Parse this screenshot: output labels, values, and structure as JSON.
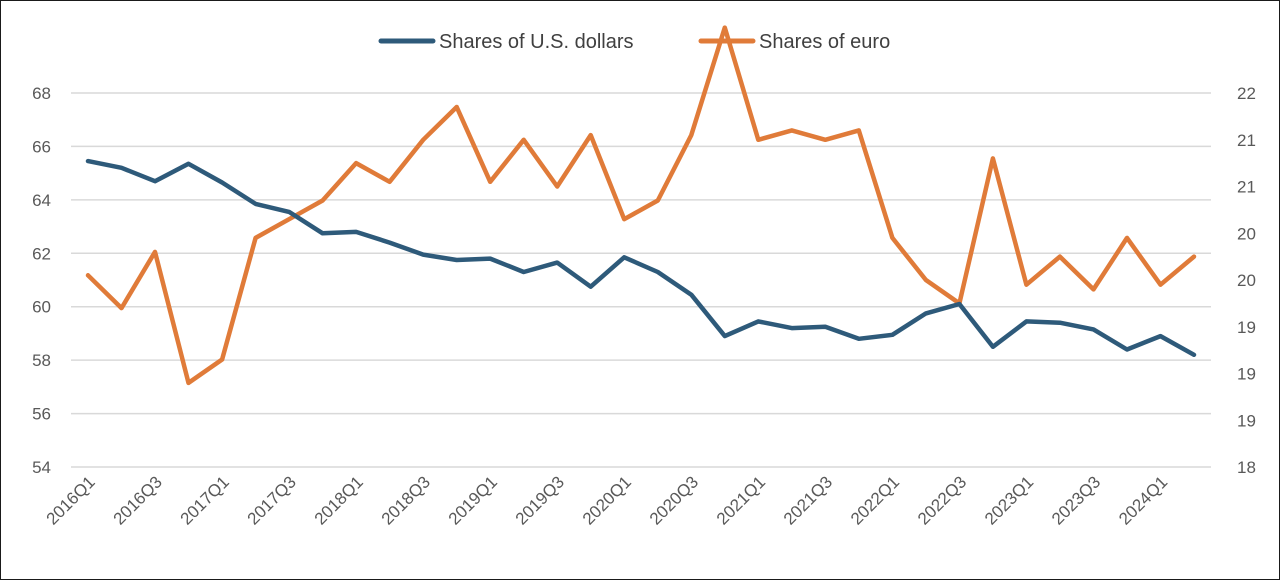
{
  "colors": {
    "usd": "#2e5a7a",
    "eur": "#e07b39",
    "grid": "#d9d9d9",
    "text": "#595959"
  },
  "chart_data": {
    "type": "line",
    "title": "",
    "legend_position": "top-center",
    "grid": true,
    "x": [
      "2016Q1",
      "2016Q2",
      "2016Q3",
      "2016Q4",
      "2017Q1",
      "2017Q2",
      "2017Q3",
      "2017Q4",
      "2018Q1",
      "2018Q2",
      "2018Q3",
      "2018Q4",
      "2019Q1",
      "2019Q2",
      "2019Q3",
      "2019Q4",
      "2020Q1",
      "2020Q2",
      "2020Q3",
      "2020Q4",
      "2021Q1",
      "2021Q2",
      "2021Q3",
      "2021Q4",
      "2022Q1",
      "2022Q2",
      "2022Q3",
      "2022Q4",
      "2023Q1",
      "2023Q2",
      "2023Q3",
      "2023Q4",
      "2024Q1",
      "2024Q2"
    ],
    "x_tick_labels": [
      "2016Q1",
      "2016Q3",
      "2017Q1",
      "2017Q3",
      "2018Q1",
      "2018Q3",
      "2019Q1",
      "2019Q3",
      "2020Q1",
      "2020Q3",
      "2021Q1",
      "2021Q3",
      "2022Q1",
      "2022Q3",
      "2023Q1",
      "2023Q3",
      "2024Q1"
    ],
    "y_left": {
      "min": 54,
      "max": 68,
      "ticks": [
        54,
        56,
        58,
        60,
        62,
        64,
        66,
        68
      ]
    },
    "y_right": {
      "min": 18,
      "max": 22,
      "tick_labels": [
        "18",
        "19",
        "19",
        "19",
        "20",
        "20",
        "21",
        "21",
        "22"
      ]
    },
    "series": [
      {
        "name": "Shares of U.S. dollars",
        "axis": "left",
        "values": [
          65.45,
          65.2,
          64.7,
          65.35,
          64.65,
          63.85,
          63.55,
          62.75,
          62.8,
          62.4,
          61.95,
          61.75,
          61.8,
          61.3,
          61.65,
          60.75,
          61.85,
          61.3,
          60.45,
          58.9,
          59.45,
          59.2,
          59.25,
          58.8,
          58.95,
          59.75,
          60.1,
          58.5,
          59.45,
          59.4,
          59.15,
          58.4,
          58.9,
          58.2
        ]
      },
      {
        "name": "Shares of euro",
        "axis": "right",
        "values": [
          20.05,
          19.7,
          20.3,
          18.9,
          19.15,
          20.45,
          20.65,
          20.85,
          21.25,
          21.05,
          21.5,
          21.85,
          21.05,
          21.5,
          21.0,
          21.55,
          20.65,
          20.85,
          21.55,
          22.7,
          21.5,
          21.6,
          21.5,
          21.6,
          20.45,
          20.0,
          19.75,
          21.3,
          19.95,
          20.25,
          19.9,
          20.45,
          19.95,
          20.25
        ]
      }
    ]
  }
}
